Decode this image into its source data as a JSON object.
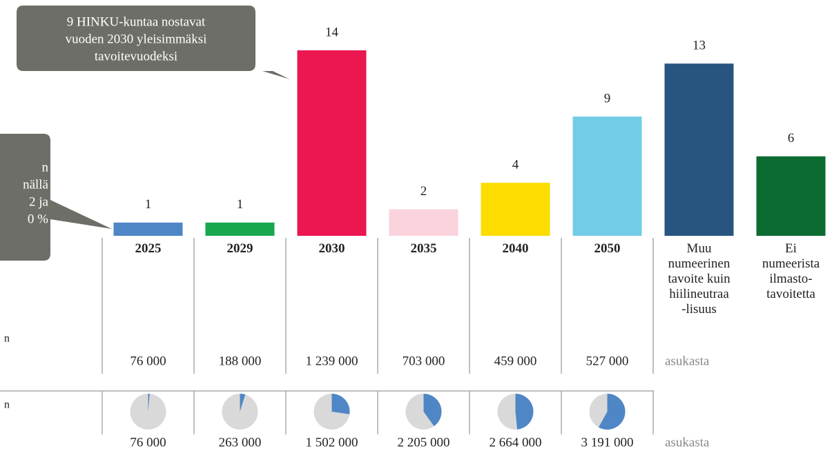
{
  "chart_data": {
    "type": "bar",
    "categories": [
      "2025",
      "2029",
      "2030",
      "2035",
      "2040",
      "2050",
      "Muu\nnumeerinen\ntavoite kuin\nhiilineutraa\n-lisuus",
      "Ei\nnumeerista\nilmasto-\ntavoitetta"
    ],
    "values": [
      1,
      1,
      14,
      2,
      4,
      9,
      13,
      6
    ],
    "colors": [
      "#4f86c6",
      "#17a84f",
      "#ec1651",
      "#fad3dd",
      "#fddc00",
      "#72cce8",
      "#27557f",
      "#0b6b31"
    ],
    "ylim": [
      0,
      14
    ],
    "callouts": [
      {
        "lines": [
          "9 HINKU-kuntaa nostavat",
          "vuoden 2030 yleisimmäksi",
          "tavoitevuodeksi"
        ]
      },
      {
        "lines": [
          "n",
          "nällä",
          "2 ja",
          "0 %"
        ]
      }
    ],
    "row_labels": [
      "n",
      "n"
    ],
    "population": {
      "values": [
        76000,
        188000,
        1239000,
        703000,
        459000,
        527000
      ],
      "value_labels": [
        "76 000",
        "188 000",
        "1 239 000",
        "703 000",
        "459 000",
        "527 000"
      ],
      "unit": "asukasta"
    },
    "cumulative": {
      "values": [
        76000,
        263000,
        1502000,
        2205000,
        2664000,
        3191000
      ],
      "value_labels": [
        "76 000",
        "263 000",
        "1 502 000",
        "2 205 000",
        "2 664 000",
        "3 191 000"
      ],
      "unit": "asukasta"
    },
    "pie": {
      "values": [
        1.4,
        4.8,
        27.3,
        40.1,
        48.4,
        58.0
      ],
      "color": "#4f86c6",
      "rest_color": "#d9d9d9"
    }
  }
}
